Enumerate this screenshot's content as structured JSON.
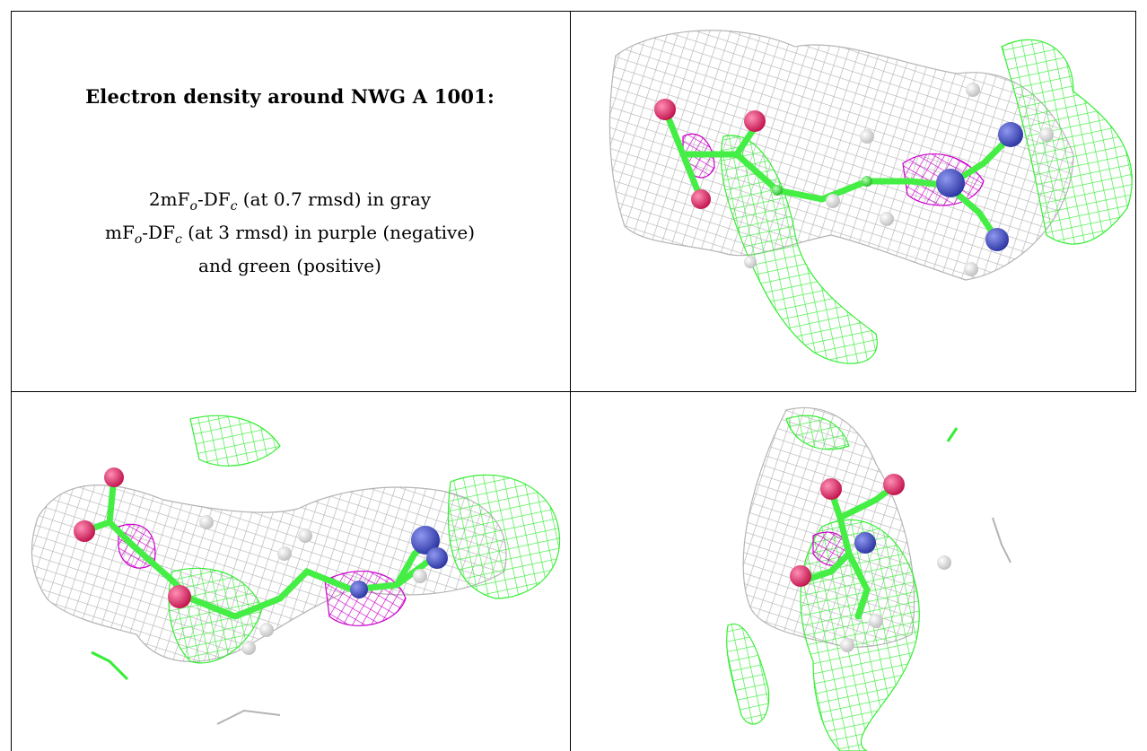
{
  "title": "Electron density around NWG A 1001:",
  "legend": {
    "line1": {
      "prefix": "2mF",
      "sub_o": "o",
      "mid": "-DF",
      "sub_c": "c",
      "suffix": " (at 0.7 rmsd) in gray"
    },
    "line2": {
      "prefix": "mF",
      "sub_o": "o",
      "mid": "-DF",
      "sub_c": "c",
      "suffix": " (at 3 rmsd) in purple (negative)"
    },
    "line3": "and green (positive)"
  },
  "colors": {
    "mesh_2fofc": "#b4b4b4",
    "mesh_negative": "#cc00cc",
    "mesh_positive": "#33ee33",
    "carbon": "#44ee44",
    "oxygen": "#e8175d",
    "nitrogen": "#3c46c8",
    "hydrogen": "#e6e6e6"
  },
  "panels": [
    "view-1",
    "view-2",
    "view-3"
  ]
}
